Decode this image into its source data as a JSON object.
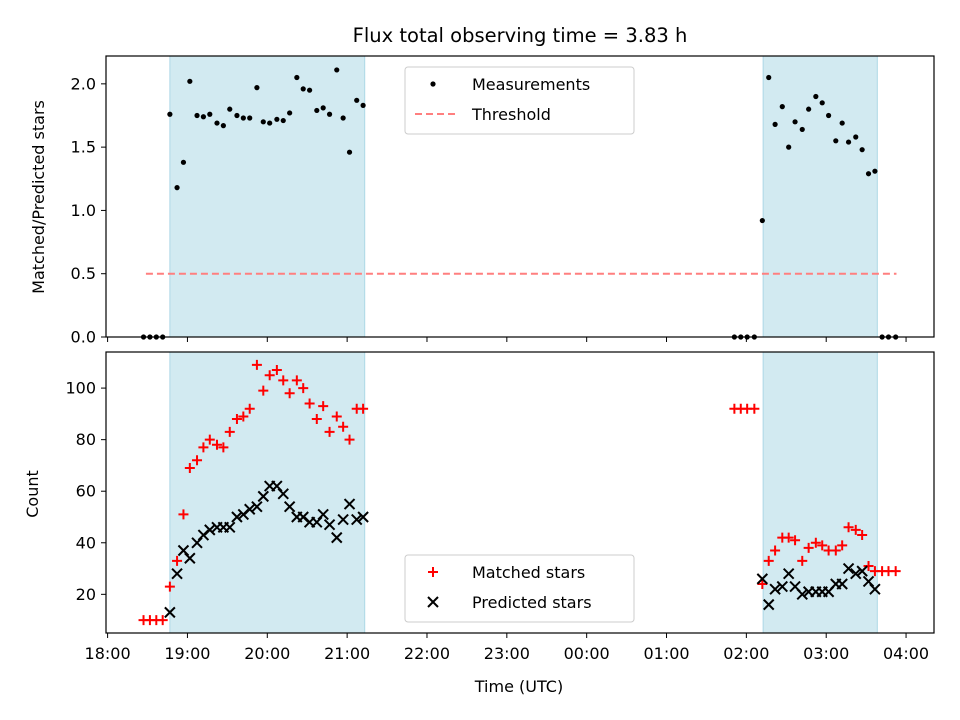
{
  "chart_data": {
    "title": "Flux total observing time = 3.83 h",
    "xlabel": "Time (UTC)",
    "x_ticks": [
      "18:00",
      "19:00",
      "20:00",
      "21:00",
      "22:00",
      "23:00",
      "00:00",
      "01:00",
      "02:00",
      "03:00",
      "04:00"
    ],
    "x_unit": "hours since 18:00 UTC",
    "xlim": [
      -0.02,
      10.35
    ],
    "shaded_intervals": [
      [
        0.78,
        3.22
      ],
      [
        8.21,
        9.64
      ]
    ],
    "shade_color": "#add8e6",
    "panels": [
      {
        "type": "scatter",
        "ylabel": "Matched/Predicted stars",
        "ylim": [
          0,
          2.22
        ],
        "y_ticks": [
          0.0,
          0.5,
          1.0,
          1.5,
          2.0
        ],
        "y_tick_labels": [
          "0.0",
          "0.5",
          "1.0",
          "1.5",
          "2.0"
        ],
        "legend_position": "upper center",
        "series": [
          {
            "name": "Measurements",
            "marker": "dot",
            "color": "#000000",
            "x": [
              0.45,
              0.53,
              0.61,
              0.69,
              0.78,
              0.87,
              0.95,
              1.03,
              1.12,
              1.2,
              1.28,
              1.37,
              1.45,
              1.53,
              1.62,
              1.7,
              1.78,
              1.87,
              1.95,
              2.03,
              2.12,
              2.2,
              2.28,
              2.37,
              2.45,
              2.53,
              2.62,
              2.7,
              2.78,
              2.87,
              2.95,
              3.03,
              3.12,
              3.2,
              7.85,
              7.93,
              8.01,
              8.1,
              8.2,
              8.28,
              8.36,
              8.45,
              8.53,
              8.61,
              8.7,
              8.78,
              8.87,
              8.95,
              9.03,
              9.12,
              9.2,
              9.28,
              9.37,
              9.45,
              9.53,
              9.61,
              9.7,
              9.78,
              9.87
            ],
            "y": [
              0.0,
              0.0,
              0.0,
              0.0,
              1.76,
              1.18,
              1.38,
              2.02,
              1.75,
              1.74,
              1.76,
              1.69,
              1.67,
              1.8,
              1.75,
              1.73,
              1.73,
              1.97,
              1.7,
              1.69,
              1.72,
              1.71,
              1.77,
              2.05,
              1.96,
              1.95,
              1.79,
              1.81,
              1.76,
              2.11,
              1.73,
              1.46,
              1.87,
              1.83,
              0.0,
              0.0,
              0.0,
              0.0,
              0.92,
              2.05,
              1.68,
              1.82,
              1.5,
              1.7,
              1.64,
              1.8,
              1.9,
              1.85,
              1.75,
              1.55,
              1.69,
              1.54,
              1.58,
              1.48,
              1.29,
              1.31,
              0.0,
              0.0,
              0.0
            ]
          },
          {
            "name": "Threshold",
            "type": "line",
            "style": "dashed",
            "color": "#ff7f7f",
            "x": [
              0.48,
              9.88
            ],
            "y": [
              0.5,
              0.5
            ]
          }
        ]
      },
      {
        "type": "scatter",
        "ylabel": "Count",
        "ylim": [
          5,
          114
        ],
        "y_ticks": [
          20,
          40,
          60,
          80,
          100
        ],
        "y_tick_labels": [
          "20",
          "40",
          "60",
          "80",
          "100"
        ],
        "legend_position": "lower center",
        "series": [
          {
            "name": "Matched stars",
            "marker": "plus",
            "color": "#ff0000",
            "x": [
              0.45,
              0.53,
              0.61,
              0.69,
              0.78,
              0.87,
              0.95,
              1.03,
              1.12,
              1.2,
              1.28,
              1.37,
              1.45,
              1.53,
              1.62,
              1.7,
              1.78,
              1.87,
              1.95,
              2.03,
              2.12,
              2.2,
              2.28,
              2.37,
              2.45,
              2.53,
              2.62,
              2.7,
              2.78,
              2.87,
              2.95,
              3.03,
              3.12,
              3.2,
              7.85,
              7.93,
              8.01,
              8.1,
              8.2,
              8.28,
              8.36,
              8.45,
              8.53,
              8.61,
              8.7,
              8.78,
              8.87,
              8.95,
              9.03,
              9.12,
              9.2,
              9.28,
              9.37,
              9.45,
              9.53,
              9.61,
              9.7,
              9.78,
              9.87
            ],
            "y": [
              10,
              10,
              10,
              10,
              23,
              33,
              51,
              69,
              72,
              77,
              80,
              78,
              77,
              83,
              88,
              89,
              92,
              109,
              99,
              105,
              107,
              103,
              98,
              103,
              100,
              94,
              88,
              93,
              83,
              89,
              85,
              80,
              92,
              92,
              92,
              92,
              92,
              92,
              24,
              33,
              37,
              42,
              42,
              41,
              33,
              38,
              40,
              39,
              37,
              37,
              39,
              46,
              45,
              43,
              31,
              29,
              29,
              29,
              29
            ]
          },
          {
            "name": "Predicted stars",
            "marker": "x",
            "color": "#000000",
            "x": [
              0.78,
              0.87,
              0.95,
              1.03,
              1.12,
              1.2,
              1.28,
              1.37,
              1.45,
              1.53,
              1.62,
              1.7,
              1.78,
              1.87,
              1.95,
              2.03,
              2.12,
              2.2,
              2.28,
              2.37,
              2.45,
              2.53,
              2.62,
              2.7,
              2.78,
              2.87,
              2.95,
              3.03,
              3.12,
              3.2,
              8.2,
              8.28,
              8.36,
              8.45,
              8.53,
              8.61,
              8.7,
              8.78,
              8.87,
              8.95,
              9.03,
              9.12,
              9.2,
              9.28,
              9.37,
              9.45,
              9.53,
              9.61
            ],
            "y": [
              13,
              28,
              37,
              34,
              40,
              43,
              45,
              46,
              46,
              46,
              50,
              51,
              53,
              54,
              58,
              62,
              62,
              59,
              54,
              50,
              50,
              48,
              48,
              51,
              47,
              42,
              49,
              55,
              49,
              50,
              26,
              16,
              22,
              23,
              28,
              23,
              20,
              21,
              21,
              21,
              21,
              24,
              24,
              30,
              28,
              29,
              25,
              22
            ]
          }
        ]
      }
    ]
  }
}
